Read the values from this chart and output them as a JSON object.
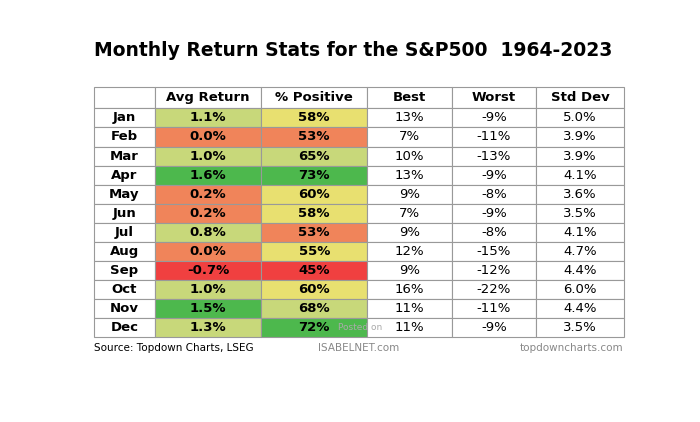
{
  "title": "Monthly Return Stats for the S&P500  1964-2023",
  "columns": [
    "",
    "Avg Return",
    "% Positive",
    "Best",
    "Worst",
    "Std Dev"
  ],
  "months": [
    "Jan",
    "Feb",
    "Mar",
    "Apr",
    "May",
    "Jun",
    "Jul",
    "Aug",
    "Sep",
    "Oct",
    "Nov",
    "Dec"
  ],
  "avg_return": [
    "1.1%",
    "0.0%",
    "1.0%",
    "1.6%",
    "0.2%",
    "0.2%",
    "0.8%",
    "0.0%",
    "-0.7%",
    "1.0%",
    "1.5%",
    "1.3%"
  ],
  "pct_positive": [
    "58%",
    "53%",
    "65%",
    "73%",
    "60%",
    "58%",
    "53%",
    "55%",
    "45%",
    "60%",
    "68%",
    "72%"
  ],
  "best": [
    "13%",
    "7%",
    "10%",
    "13%",
    "9%",
    "7%",
    "9%",
    "12%",
    "9%",
    "16%",
    "11%",
    "11%"
  ],
  "worst": [
    "-9%",
    "-11%",
    "-13%",
    "-9%",
    "-8%",
    "-9%",
    "-8%",
    "-15%",
    "-12%",
    "-22%",
    "-11%",
    "-9%"
  ],
  "std_dev": [
    "5.0%",
    "3.9%",
    "3.9%",
    "4.1%",
    "3.6%",
    "3.5%",
    "4.1%",
    "4.7%",
    "4.4%",
    "6.0%",
    "4.4%",
    "3.5%"
  ],
  "avg_return_colors": [
    "#c8d87a",
    "#f0845a",
    "#c8d87a",
    "#4db84d",
    "#f0845a",
    "#f0845a",
    "#c8d87a",
    "#f0845a",
    "#f04040",
    "#c8d87a",
    "#4db84d",
    "#c8d87a"
  ],
  "pct_positive_colors": [
    "#e8e070",
    "#f0845a",
    "#c8d87a",
    "#4db84d",
    "#e8e070",
    "#e8e070",
    "#f0845a",
    "#e8e070",
    "#f04040",
    "#e8e070",
    "#c8d87a",
    "#4db84d"
  ],
  "source_text": "Source: Topdown Charts, LSEG",
  "watermark_text": "Posted on",
  "isabelnet_text": "ISABELNET.com",
  "topdown_text": "topdowncharts.com",
  "bg_color": "#ffffff",
  "title_fontsize": 13.5,
  "header_fontsize": 9.5,
  "cell_fontsize": 9.5,
  "month_fontsize": 9.5
}
